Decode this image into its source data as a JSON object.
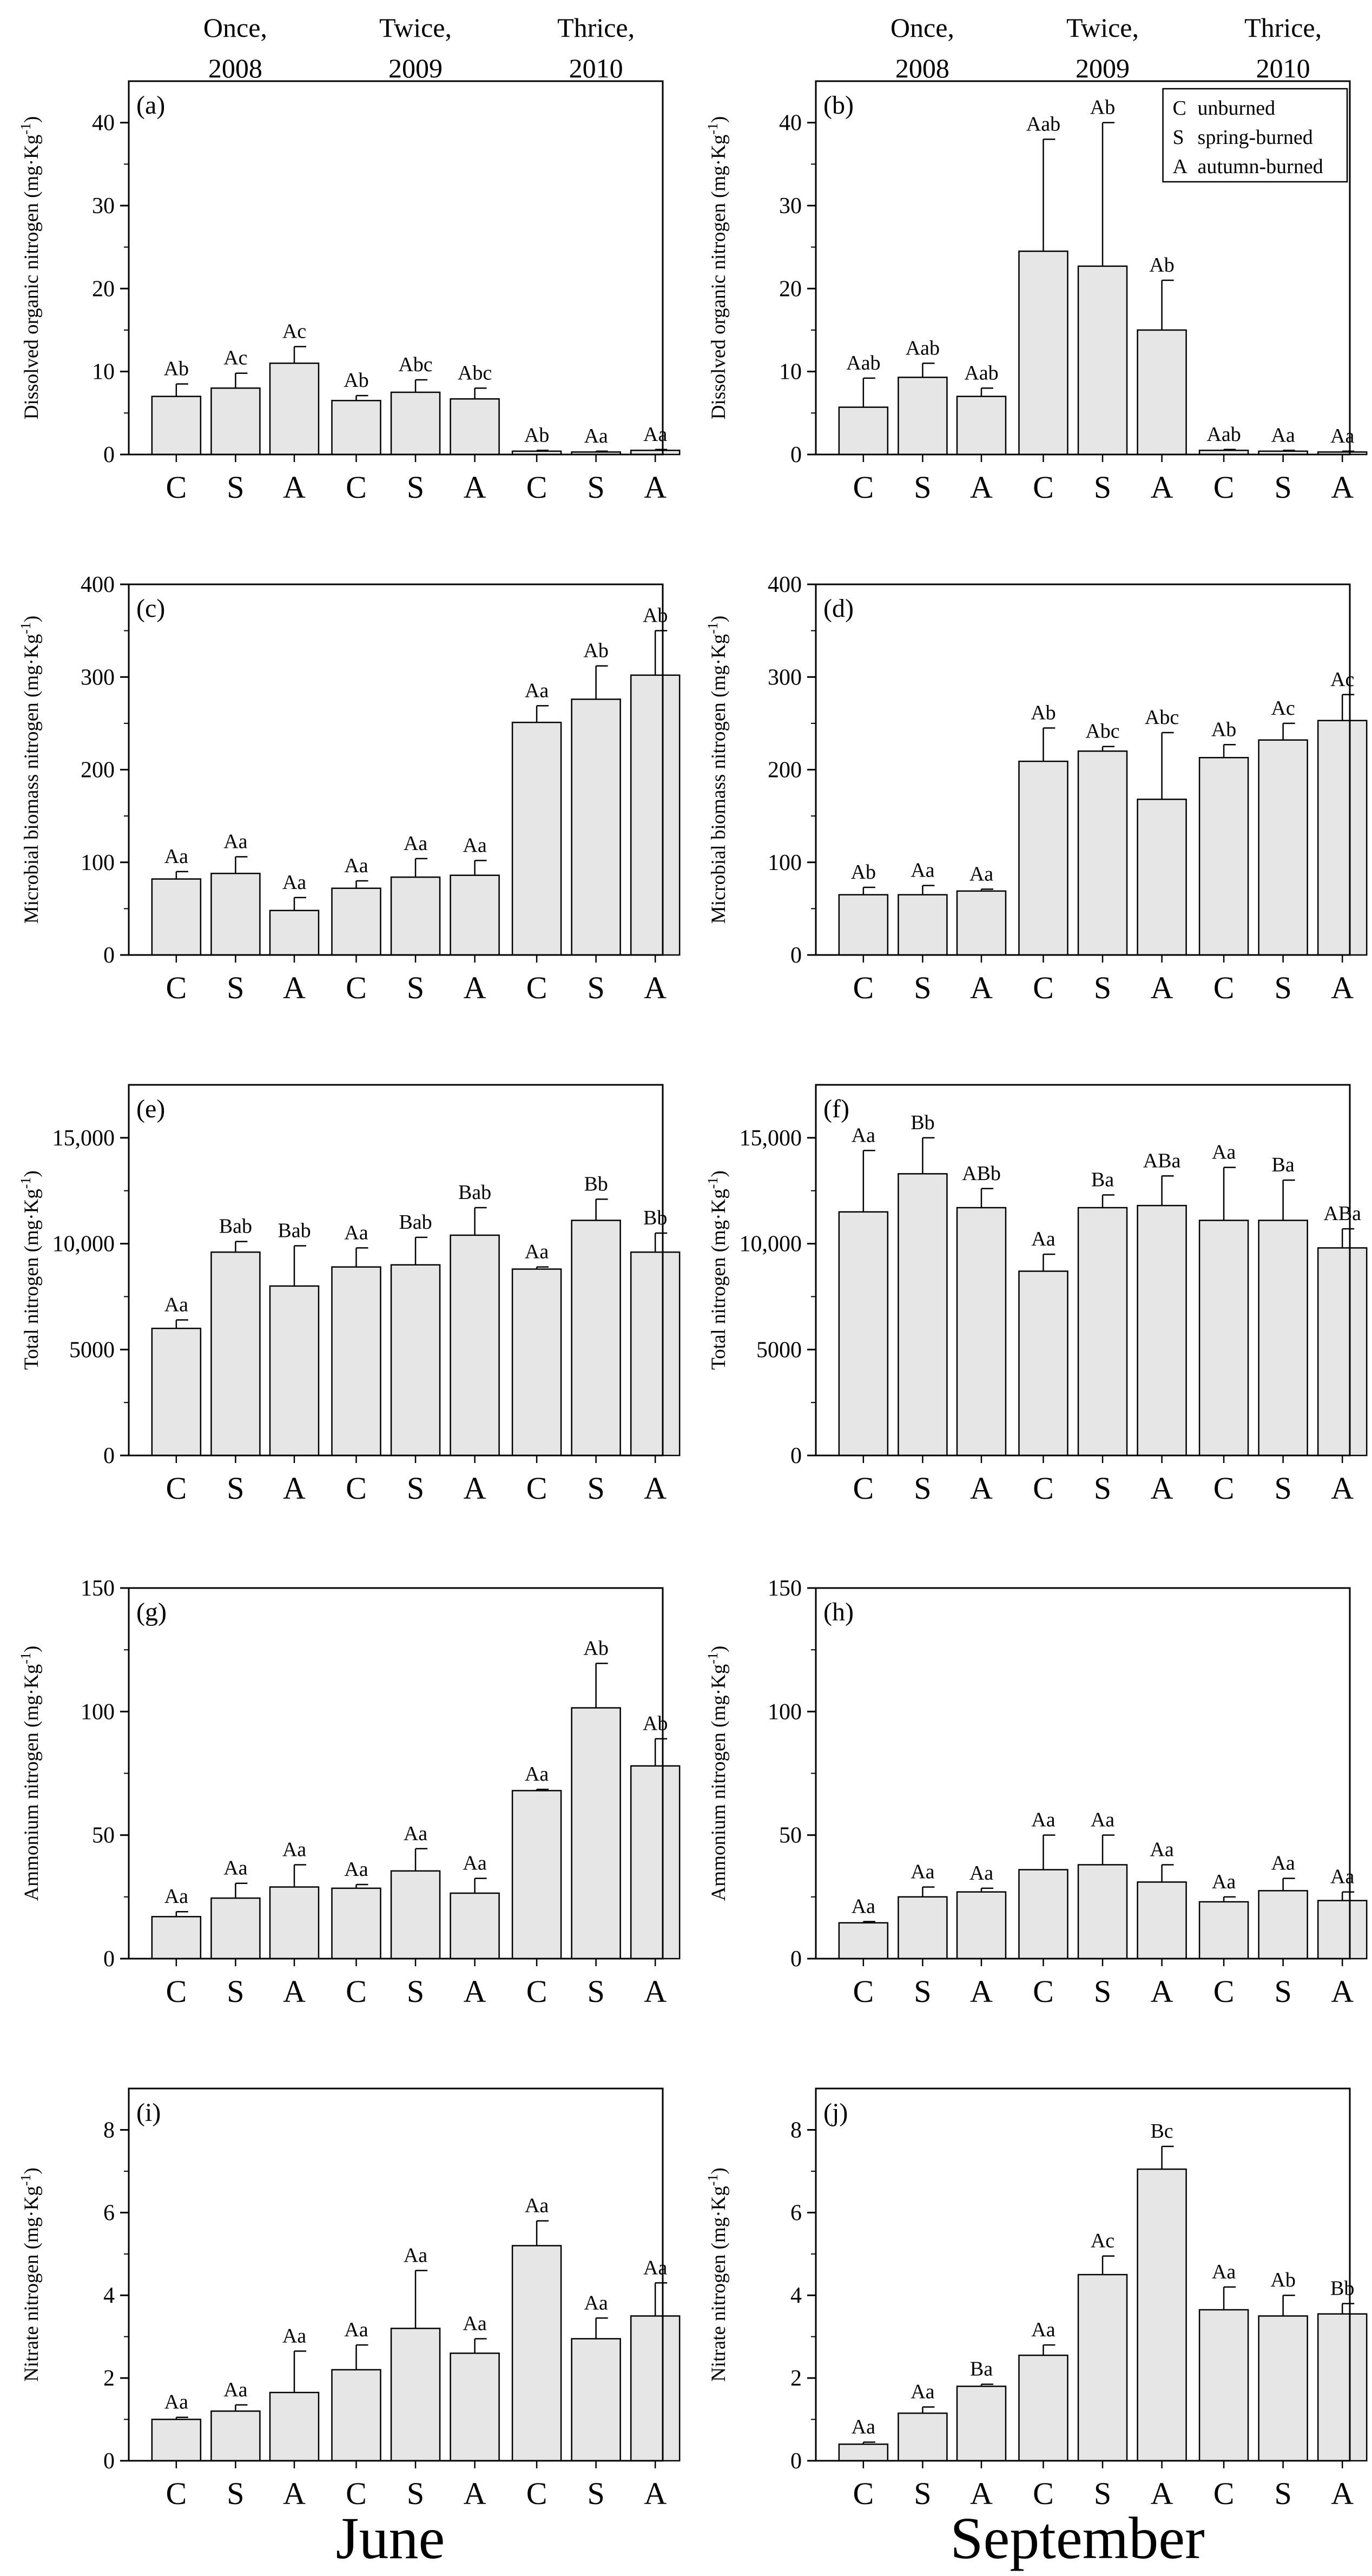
{
  "figure": {
    "group_labels": [
      [
        "Once,",
        "2008"
      ],
      [
        "Twice,",
        "2009"
      ],
      [
        "Thrice,",
        "2010"
      ]
    ],
    "months": [
      "June",
      "September"
    ],
    "legend": [
      {
        "code": "C",
        "label": "unburned"
      },
      {
        "code": "S",
        "label": "spring-burned"
      },
      {
        "code": "A",
        "label": "autumn-burned"
      }
    ],
    "bar_color": "#e6e6e6",
    "line_color": "#000000"
  },
  "chart_data": [
    {
      "panel": "(a)",
      "month": "June",
      "type": "bar",
      "ylabel": "Dissolved organic nitrogen (mg·Kg⁻¹)",
      "ylim": [
        0,
        45
      ],
      "yticks": [
        0,
        10,
        20,
        30,
        40
      ],
      "categories": [
        "C",
        "S",
        "A",
        "C",
        "S",
        "A",
        "C",
        "S",
        "A"
      ],
      "values": [
        7.0,
        8.0,
        11.0,
        6.5,
        7.5,
        6.7,
        0.4,
        0.3,
        0.5
      ],
      "errors": [
        1.5,
        1.8,
        2.0,
        0.6,
        1.5,
        1.3,
        0.1,
        0.1,
        0.1
      ],
      "labels": [
        "Ab",
        "Ac",
        "Ac",
        "Ab",
        "Abc",
        "Abc",
        "Ab",
        "Aa",
        "Aa"
      ]
    },
    {
      "panel": "(b)",
      "month": "September",
      "type": "bar",
      "ylabel": "Dissolved organic nitrogen (mg·Kg⁻¹)",
      "ylim": [
        0,
        45
      ],
      "yticks": [
        0,
        10,
        20,
        30,
        40
      ],
      "categories": [
        "C",
        "S",
        "A",
        "C",
        "S",
        "A",
        "C",
        "S",
        "A"
      ],
      "values": [
        5.7,
        9.3,
        7.0,
        24.5,
        22.7,
        15.0,
        0.5,
        0.4,
        0.3
      ],
      "errors": [
        3.5,
        1.7,
        1.0,
        13.5,
        17.3,
        6.0,
        0.1,
        0.1,
        0.1
      ],
      "labels": [
        "Aab",
        "Aab",
        "Aab",
        "Aab",
        "Ab",
        "Ab",
        "Aab",
        "Aa",
        "Aa"
      ],
      "legend": "top-right"
    },
    {
      "panel": "(c)",
      "month": "June",
      "type": "bar",
      "ylabel": "Microbial biomass nitrogen (mg·Kg⁻¹)",
      "ylim": [
        0,
        400
      ],
      "yticks": [
        0,
        100,
        200,
        300,
        400
      ],
      "categories": [
        "C",
        "S",
        "A",
        "C",
        "S",
        "A",
        "C",
        "S",
        "A"
      ],
      "values": [
        82,
        88,
        48,
        72,
        84,
        86,
        251,
        276,
        302
      ],
      "errors": [
        8,
        18,
        14,
        8,
        20,
        16,
        18,
        36,
        48
      ],
      "labels": [
        "Aa",
        "Aa",
        "Aa",
        "Aa",
        "Aa",
        "Aa",
        "Aa",
        "Ab",
        "Ab"
      ]
    },
    {
      "panel": "(d)",
      "month": "September",
      "type": "bar",
      "ylabel": "Microbial biomass nitrogen (mg·Kg⁻¹)",
      "ylim": [
        0,
        400
      ],
      "yticks": [
        0,
        100,
        200,
        300,
        400
      ],
      "categories": [
        "C",
        "S",
        "A",
        "C",
        "S",
        "A",
        "C",
        "S",
        "A"
      ],
      "values": [
        65,
        65,
        69,
        209,
        220,
        168,
        213,
        232,
        253
      ],
      "errors": [
        8,
        10,
        2,
        36,
        5,
        72,
        14,
        18,
        28
      ],
      "labels": [
        "Ab",
        "Aa",
        "Aa",
        "Ab",
        "Abc",
        "Abc",
        "Ab",
        "Ac",
        "Ac"
      ]
    },
    {
      "panel": "(e)",
      "month": "June",
      "type": "bar",
      "ylabel": "Total nitrogen (mg·Kg⁻¹)",
      "ylim": [
        0,
        17500
      ],
      "yticks": [
        0,
        5000,
        10000,
        15000
      ],
      "categories": [
        "C",
        "S",
        "A",
        "C",
        "S",
        "A",
        "C",
        "S",
        "A"
      ],
      "values": [
        6000,
        9600,
        8000,
        8900,
        9000,
        10400,
        8800,
        11100,
        9600
      ],
      "errors": [
        400,
        500,
        1900,
        900,
        1300,
        1300,
        100,
        1000,
        900
      ],
      "labels": [
        "Aa",
        "Bab",
        "Bab",
        "Aa",
        "Bab",
        "Bab",
        "Aa",
        "Bb",
        "Bb"
      ]
    },
    {
      "panel": "(f)",
      "month": "September",
      "type": "bar",
      "ylabel": "Total nitrogen (mg·Kg⁻¹)",
      "ylim": [
        0,
        17500
      ],
      "yticks": [
        0,
        5000,
        10000,
        15000
      ],
      "categories": [
        "C",
        "S",
        "A",
        "C",
        "S",
        "A",
        "C",
        "S",
        "A"
      ],
      "values": [
        11500,
        13300,
        11700,
        8700,
        11700,
        11800,
        11100,
        11100,
        9800
      ],
      "errors": [
        2900,
        1700,
        900,
        800,
        600,
        1400,
        2500,
        1900,
        900
      ],
      "labels": [
        "Aa",
        "Bb",
        "ABb",
        "Aa",
        "Ba",
        "ABa",
        "Aa",
        "Ba",
        "ABa"
      ]
    },
    {
      "panel": "(g)",
      "month": "June",
      "type": "bar",
      "ylabel": "Ammonium nitrogen (mg·Kg⁻¹)",
      "ylim": [
        0,
        150
      ],
      "yticks": [
        0,
        50,
        100,
        150
      ],
      "categories": [
        "C",
        "S",
        "A",
        "C",
        "S",
        "A",
        "C",
        "S",
        "A"
      ],
      "values": [
        17,
        24.5,
        29,
        28.5,
        35.5,
        26.5,
        68,
        101.5,
        78
      ],
      "errors": [
        2,
        6,
        9,
        1.5,
        9,
        6,
        0.5,
        18,
        11
      ],
      "labels": [
        "Aa",
        "Aa",
        "Aa",
        "Aa",
        "Aa",
        "Aa",
        "Aa",
        "Ab",
        "Ab"
      ]
    },
    {
      "panel": "(h)",
      "month": "September",
      "type": "bar",
      "ylabel": "Ammonium nitrogen (mg·Kg⁻¹)",
      "ylim": [
        0,
        150
      ],
      "yticks": [
        0,
        50,
        100,
        150
      ],
      "categories": [
        "C",
        "S",
        "A",
        "C",
        "S",
        "A",
        "C",
        "S",
        "A"
      ],
      "values": [
        14.5,
        25,
        27,
        36,
        38,
        31,
        23,
        27.5,
        23.5
      ],
      "errors": [
        0.5,
        4,
        1.5,
        14,
        12,
        7,
        2,
        5,
        3.5
      ],
      "labels": [
        "Aa",
        "Aa",
        "Aa",
        "Aa",
        "Aa",
        "Aa",
        "Aa",
        "Aa",
        "Aa"
      ]
    },
    {
      "panel": "(i)",
      "month": "June",
      "type": "bar",
      "ylabel": "Nitrate nitrogen (mg·Kg⁻¹)",
      "ylim": [
        0,
        9
      ],
      "yticks": [
        0,
        2,
        4,
        6,
        8
      ],
      "categories": [
        "C",
        "S",
        "A",
        "C",
        "S",
        "A",
        "C",
        "S",
        "A"
      ],
      "values": [
        1.0,
        1.2,
        1.65,
        2.2,
        3.2,
        2.6,
        5.2,
        2.95,
        3.5
      ],
      "errors": [
        0.05,
        0.15,
        1.0,
        0.6,
        1.4,
        0.35,
        0.6,
        0.5,
        0.8
      ],
      "labels": [
        "Aa",
        "Aa",
        "Aa",
        "Aa",
        "Aa",
        "Aa",
        "Aa",
        "Aa",
        "Aa"
      ]
    },
    {
      "panel": "(j)",
      "month": "September",
      "type": "bar",
      "ylabel": "Nitrate nitrogen (mg·Kg⁻¹)",
      "ylim": [
        0,
        9
      ],
      "yticks": [
        0,
        2,
        4,
        6,
        8
      ],
      "categories": [
        "C",
        "S",
        "A",
        "C",
        "S",
        "A",
        "C",
        "S",
        "A"
      ],
      "values": [
        0.4,
        1.15,
        1.8,
        2.55,
        4.5,
        7.05,
        3.65,
        3.5,
        3.55
      ],
      "errors": [
        0.05,
        0.15,
        0.05,
        0.25,
        0.45,
        0.55,
        0.55,
        0.5,
        0.25
      ],
      "labels": [
        "Aa",
        "Aa",
        "Ba",
        "Aa",
        "Ac",
        "Bc",
        "Aa",
        "Ab",
        "Bb"
      ]
    }
  ]
}
